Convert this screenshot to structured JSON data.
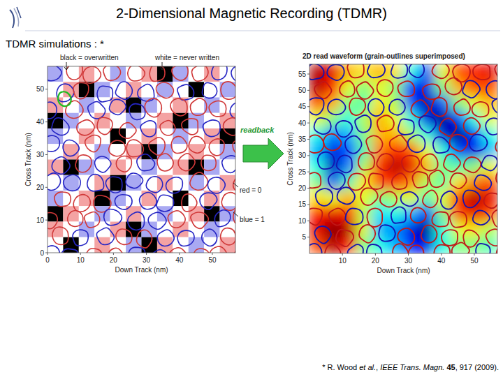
{
  "header": {
    "title": "2-Dimensional Magnetic Recording (TDMR)",
    "subtitle": "TDMR simulations : *"
  },
  "arrow_label": "readback",
  "footnote": {
    "parts": [
      {
        "text": "* R. Wood "
      },
      {
        "text": "et al.",
        "italic": true
      },
      {
        "text": ", "
      },
      {
        "text": "IEEE Trans. Magn.",
        "italic": true
      },
      {
        "text": " "
      },
      {
        "text": "45",
        "bold": true
      },
      {
        "text": ", 917 (2009)."
      }
    ]
  },
  "chart_data": [
    {
      "type": "heatmap",
      "x_label": "Down Track (nm)",
      "y_label": "Cross Track (nm)",
      "xlim": [
        0,
        57
      ],
      "ylim": [
        0,
        57
      ],
      "xticks": [
        0,
        10,
        20,
        30,
        40,
        50
      ],
      "yticks": [
        0,
        10,
        20,
        30,
        40,
        50
      ],
      "annotations": [
        "black = overwritten",
        "white = never written",
        "red = 0",
        "blue = 1"
      ],
      "legend_items": [
        {
          "label": "red = 0",
          "value": 0,
          "color": "#f4a3a3"
        },
        {
          "label": "blue = 1",
          "value": 1,
          "color": "#a9a9f2"
        },
        {
          "label": "black = overwritten",
          "value": -1,
          "color": "#000000"
        },
        {
          "label": "white = never written",
          "value": null,
          "color": "#ffffff"
        }
      ],
      "cells": [
        [
          1,
          null,
          0,
          null,
          1,
          null,
          0,
          -1,
          1,
          null,
          0,
          null
        ],
        [
          null,
          0,
          -1,
          1,
          null,
          0,
          null,
          1,
          null,
          -1,
          null,
          1
        ],
        [
          0,
          null,
          1,
          null,
          0,
          -1,
          1,
          null,
          0,
          null,
          1,
          null
        ],
        [
          -1,
          1,
          null,
          0,
          null,
          1,
          null,
          0,
          -1,
          1,
          null,
          0
        ],
        [
          1,
          null,
          0,
          null,
          -1,
          null,
          0,
          null,
          1,
          null,
          0,
          -1
        ],
        [
          null,
          0,
          null,
          1,
          null,
          0,
          -1,
          1,
          null,
          0,
          null,
          1
        ],
        [
          0,
          -1,
          1,
          null,
          0,
          null,
          1,
          null,
          0,
          -1,
          1,
          null
        ],
        [
          null,
          1,
          null,
          0,
          -1,
          1,
          null,
          0,
          null,
          1,
          null,
          0
        ],
        [
          1,
          null,
          0,
          -1,
          1,
          null,
          0,
          null,
          -1,
          null,
          0,
          null
        ],
        [
          -1,
          0,
          null,
          1,
          null,
          0,
          null,
          1,
          null,
          0,
          -1,
          1
        ],
        [
          0,
          null,
          1,
          null,
          0,
          -1,
          1,
          null,
          0,
          null,
          1,
          null
        ],
        [
          null,
          -1,
          null,
          0,
          null,
          1,
          -1,
          0,
          null,
          1,
          null,
          0
        ]
      ]
    },
    {
      "type": "heatmap",
      "title": "2D read waveform (grain-outlines superimposed)",
      "x_label": "Down Track (nm)",
      "y_label": "Cross Track (nm)",
      "xlim": [
        0,
        57
      ],
      "ylim": [
        0,
        58
      ],
      "xticks": [
        10,
        20,
        30,
        40,
        50
      ],
      "yticks": [
        5,
        10,
        15,
        20,
        25,
        30,
        35,
        40,
        45,
        50,
        55
      ],
      "value_range": [
        0,
        1
      ],
      "cells": [
        [
          0.05,
          0.1,
          0.3,
          0.35,
          0.3,
          0.35,
          0.6,
          0.8,
          0.4,
          0.2,
          0.15,
          0.1
        ],
        [
          0.05,
          0.15,
          0.4,
          0.5,
          0.4,
          0.5,
          0.85,
          0.9,
          0.5,
          0.3,
          0.2,
          0.2
        ],
        [
          0.2,
          0.3,
          0.5,
          0.55,
          0.35,
          0.45,
          0.8,
          0.95,
          0.8,
          0.5,
          0.4,
          0.3
        ],
        [
          0.4,
          0.5,
          0.6,
          0.45,
          0.3,
          0.4,
          0.6,
          0.9,
          1.0,
          0.85,
          0.6,
          0.4
        ],
        [
          0.6,
          0.75,
          0.7,
          0.5,
          0.3,
          0.3,
          0.45,
          0.6,
          0.9,
          1.0,
          0.85,
          0.6
        ],
        [
          0.7,
          0.9,
          0.8,
          0.55,
          0.25,
          0.15,
          0.2,
          0.4,
          0.6,
          0.8,
          0.9,
          0.7
        ],
        [
          0.6,
          0.95,
          0.75,
          0.45,
          0.15,
          0.05,
          0.1,
          0.3,
          0.5,
          0.55,
          0.5,
          0.4
        ],
        [
          0.5,
          0.8,
          0.55,
          0.35,
          0.2,
          0.15,
          0.25,
          0.45,
          0.55,
          0.35,
          0.25,
          0.2
        ],
        [
          0.35,
          0.4,
          0.3,
          0.4,
          0.5,
          0.45,
          0.4,
          0.55,
          0.4,
          0.15,
          0.05,
          0.1
        ],
        [
          0.15,
          0.1,
          0.15,
          0.45,
          0.65,
          0.6,
          0.7,
          0.85,
          0.5,
          0.2,
          0.1,
          0.2
        ],
        [
          0.1,
          0.0,
          0.05,
          0.4,
          0.7,
          0.75,
          0.9,
          1.0,
          0.6,
          0.4,
          0.35,
          0.45
        ],
        [
          0.2,
          0.05,
          0.15,
          0.5,
          0.6,
          0.7,
          0.85,
          0.9,
          0.6,
          0.5,
          0.5,
          0.55
        ]
      ]
    }
  ]
}
